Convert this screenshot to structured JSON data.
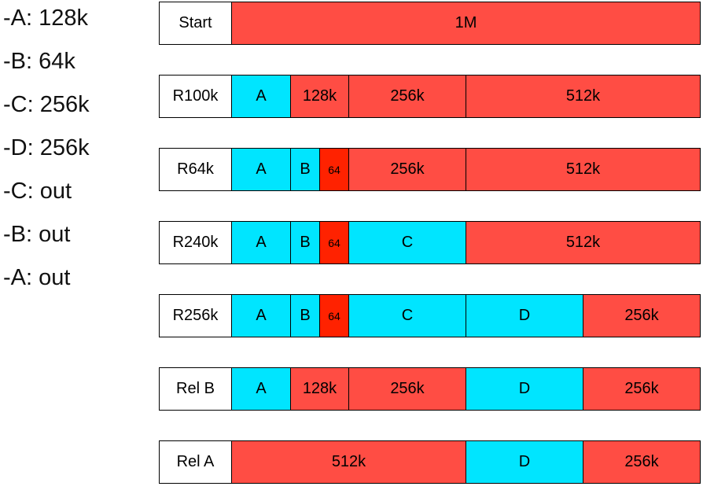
{
  "legend": [
    "-A: 128k",
    "-B: 64k",
    "-C: 256k",
    "-D: 256k",
    "-C: out",
    "-B: out",
    "-A: out"
  ],
  "colors": {
    "allocated": "#00e5ff",
    "free": "#ff4d44",
    "fragment": "#ff2200"
  },
  "rows": [
    {
      "label": "Start",
      "blocks": [
        {
          "text": "1M",
          "size_k": 1024,
          "state": "free"
        }
      ]
    },
    {
      "label": "R100k",
      "blocks": [
        {
          "text": "A",
          "size_k": 128,
          "state": "allocated"
        },
        {
          "text": "128k",
          "size_k": 128,
          "state": "free"
        },
        {
          "text": "256k",
          "size_k": 256,
          "state": "free"
        },
        {
          "text": "512k",
          "size_k": 512,
          "state": "free"
        }
      ]
    },
    {
      "label": "R64k",
      "blocks": [
        {
          "text": "A",
          "size_k": 128,
          "state": "allocated"
        },
        {
          "text": "B",
          "size_k": 64,
          "state": "allocated"
        },
        {
          "text": "64",
          "size_k": 64,
          "state": "fragment"
        },
        {
          "text": "256k",
          "size_k": 256,
          "state": "free"
        },
        {
          "text": "512k",
          "size_k": 512,
          "state": "free"
        }
      ]
    },
    {
      "label": "R240k",
      "blocks": [
        {
          "text": "A",
          "size_k": 128,
          "state": "allocated"
        },
        {
          "text": "B",
          "size_k": 64,
          "state": "allocated"
        },
        {
          "text": "64",
          "size_k": 64,
          "state": "fragment"
        },
        {
          "text": "C",
          "size_k": 256,
          "state": "allocated"
        },
        {
          "text": "512k",
          "size_k": 512,
          "state": "free"
        }
      ]
    },
    {
      "label": "R256k",
      "blocks": [
        {
          "text": "A",
          "size_k": 128,
          "state": "allocated"
        },
        {
          "text": "B",
          "size_k": 64,
          "state": "allocated"
        },
        {
          "text": "64",
          "size_k": 64,
          "state": "fragment"
        },
        {
          "text": "C",
          "size_k": 256,
          "state": "allocated"
        },
        {
          "text": "D",
          "size_k": 256,
          "state": "allocated"
        },
        {
          "text": "256k",
          "size_k": 256,
          "state": "free"
        }
      ]
    },
    {
      "label": "Rel B",
      "blocks": [
        {
          "text": "A",
          "size_k": 128,
          "state": "allocated"
        },
        {
          "text": "128k",
          "size_k": 128,
          "state": "free"
        },
        {
          "text": "256k",
          "size_k": 256,
          "state": "free"
        },
        {
          "text": "D",
          "size_k": 256,
          "state": "allocated"
        },
        {
          "text": "256k",
          "size_k": 256,
          "state": "free"
        }
      ]
    },
    {
      "label": "Rel A",
      "blocks": [
        {
          "text": "512k",
          "size_k": 512,
          "state": "free"
        },
        {
          "text": "D",
          "size_k": 256,
          "state": "allocated"
        },
        {
          "text": "256k",
          "size_k": 256,
          "state": "free"
        }
      ]
    }
  ]
}
